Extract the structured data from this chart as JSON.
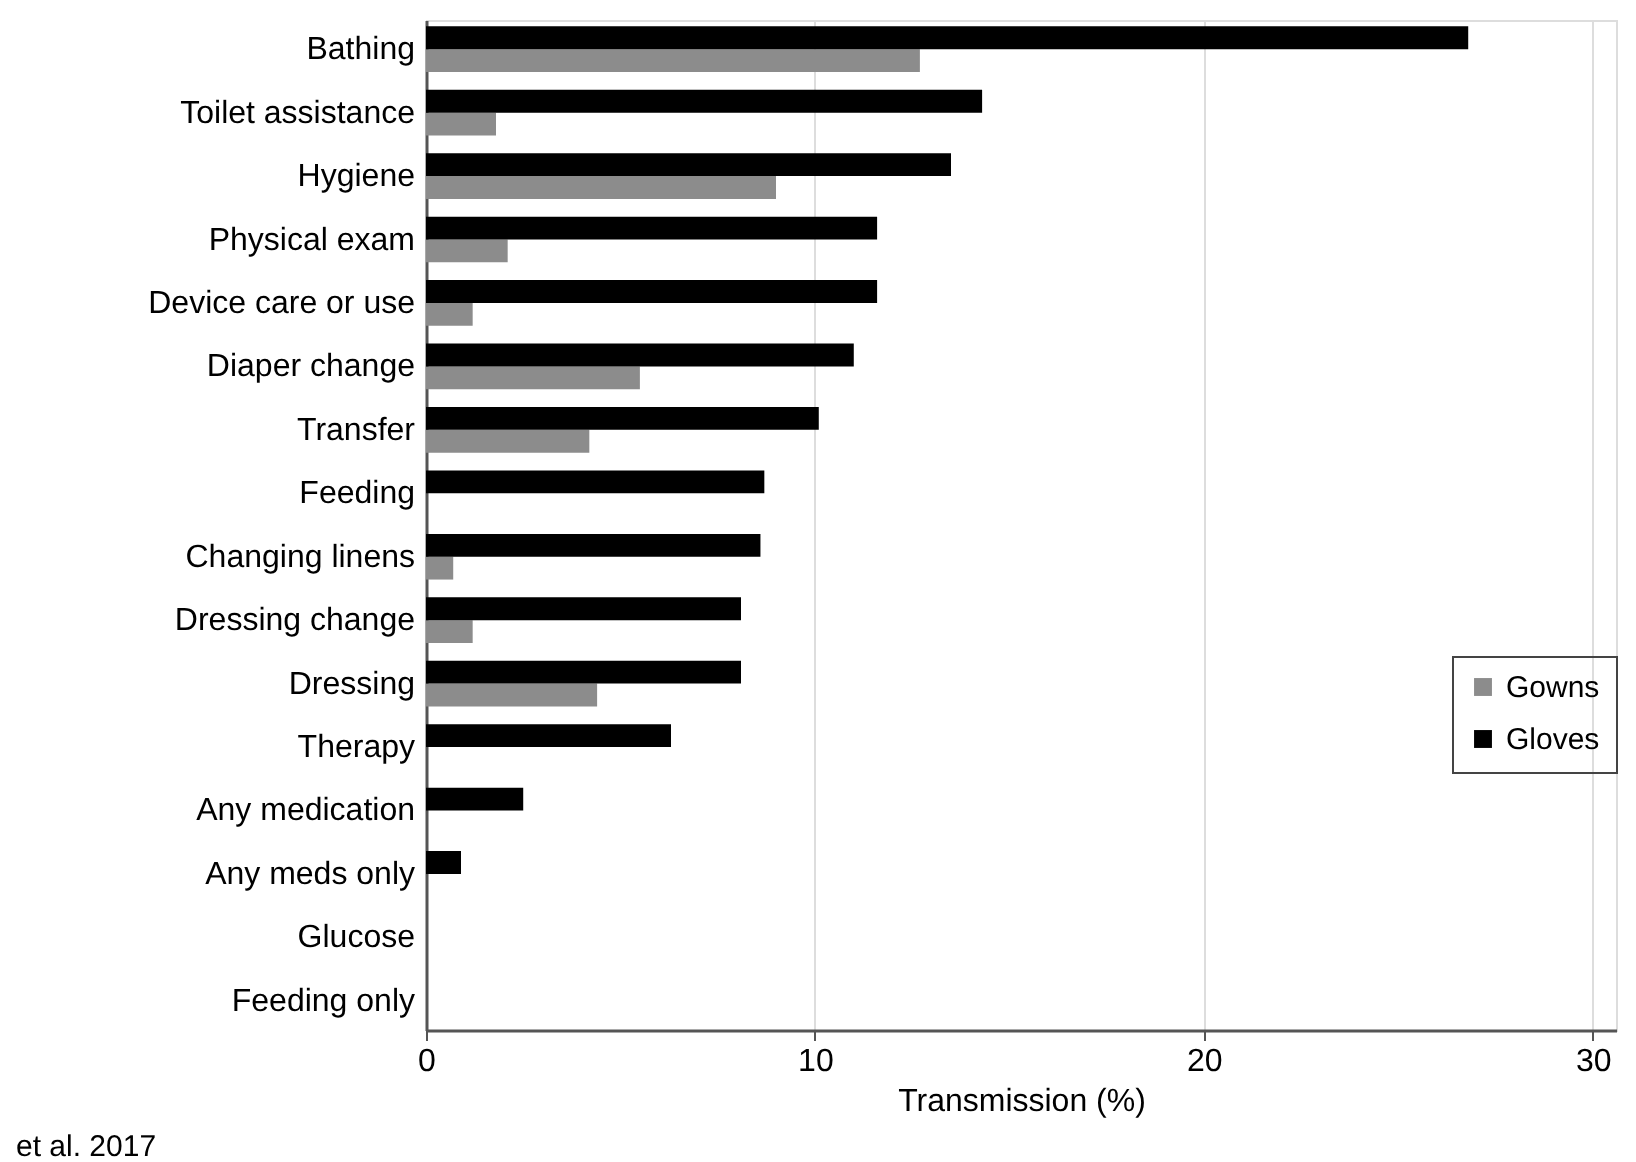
{
  "chart_data": {
    "type": "bar",
    "orientation": "horizontal",
    "categories": [
      "Bathing",
      "Toilet assistance",
      "Hygiene",
      "Physical exam",
      "Device care or use",
      "Diaper change",
      "Transfer",
      "Feeding",
      "Changing linens",
      "Dressing change",
      "Dressing",
      "Therapy",
      "Any medication",
      "Any meds only",
      "Glucose",
      "Feeding only"
    ],
    "series": [
      {
        "name": "Gowns",
        "color": "#8c8c8c",
        "values": [
          12.7,
          1.8,
          9.0,
          2.1,
          1.2,
          5.5,
          4.2,
          0,
          0.7,
          1.2,
          4.4,
          0,
          0,
          0,
          0,
          0
        ]
      },
      {
        "name": "Gloves",
        "color": "#000000",
        "values": [
          26.8,
          14.3,
          13.5,
          11.6,
          11.6,
          11.0,
          10.1,
          8.7,
          8.6,
          8.1,
          8.1,
          6.3,
          2.5,
          0.9,
          0,
          0
        ]
      }
    ],
    "xlabel": "Transmission (%)",
    "xlim": [
      0,
      30.6
    ],
    "xticks": [
      0,
      10,
      20,
      30
    ],
    "grid": "x",
    "legend": "right",
    "annotations": [
      "et al. 2017"
    ]
  }
}
